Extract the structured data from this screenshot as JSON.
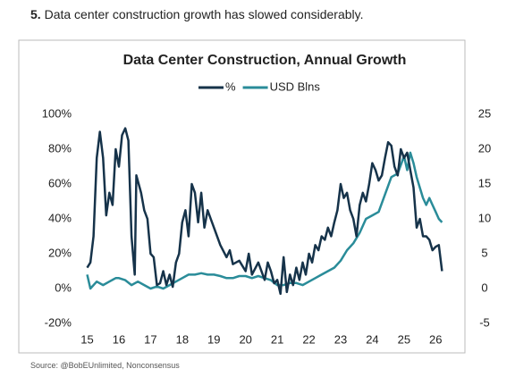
{
  "header": {
    "number": "5.",
    "text": "Data center construction growth has slowed considerably."
  },
  "source": "Source: @BobEUnlimited, Nonconsensus",
  "chart_data": {
    "type": "line",
    "title": "Data Center Construction, Annual Growth",
    "xlim": [
      14.9,
      26.5
    ],
    "xticks": [
      15,
      16,
      17,
      18,
      19,
      20,
      21,
      22,
      23,
      24,
      25,
      26
    ],
    "ylim": [
      -20,
      100
    ],
    "yticks": [
      {
        "value": 100,
        "label": "100%"
      },
      {
        "value": 80,
        "label": "80%"
      },
      {
        "value": 60,
        "label": "60%"
      },
      {
        "value": 40,
        "label": "40%"
      },
      {
        "value": 20,
        "label": "20%"
      },
      {
        "value": 0,
        "label": "0%"
      },
      {
        "value": -20,
        "label": "-20%"
      }
    ],
    "y2lim": [
      -5,
      25
    ],
    "y2ticks": [
      25,
      20,
      15,
      10,
      5,
      0,
      -5
    ],
    "series": [
      {
        "name": "%",
        "color": "#16334a",
        "x": [
          15.0,
          15.1,
          15.2,
          15.3,
          15.4,
          15.5,
          15.6,
          15.7,
          15.8,
          15.9,
          16.0,
          16.1,
          16.2,
          16.3,
          16.4,
          16.5,
          16.55,
          16.7,
          16.8,
          16.9,
          17.0,
          17.1,
          17.2,
          17.3,
          17.4,
          17.5,
          17.6,
          17.7,
          17.8,
          17.9,
          18.0,
          18.1,
          18.2,
          18.3,
          18.4,
          18.5,
          18.6,
          18.7,
          18.8,
          18.9,
          19.0,
          19.2,
          19.4,
          19.5,
          19.6,
          19.8,
          20.0,
          20.1,
          20.2,
          20.4,
          20.6,
          20.7,
          20.8,
          20.9,
          21.0,
          21.1,
          21.2,
          21.3,
          21.4,
          21.5,
          21.6,
          21.7,
          21.8,
          21.9,
          22.0,
          22.1,
          22.2,
          22.3,
          22.4,
          22.5,
          22.6,
          22.7,
          22.8,
          22.9,
          23.0,
          23.1,
          23.2,
          23.3,
          23.4,
          23.5,
          23.6,
          23.7,
          23.8,
          23.9,
          24.0,
          24.1,
          24.2,
          24.3,
          24.4,
          24.5,
          24.6,
          24.7,
          24.8,
          24.9,
          25.0,
          25.1,
          25.2,
          25.3,
          25.4,
          25.5,
          25.6,
          25.7,
          25.8,
          25.9,
          26.0,
          26.1,
          26.2
        ],
        "values": [
          12,
          15,
          30,
          75,
          90,
          75,
          42,
          55,
          48,
          80,
          70,
          88,
          92,
          85,
          30,
          8,
          65,
          55,
          45,
          40,
          20,
          18,
          2,
          3,
          10,
          2,
          8,
          1,
          15,
          20,
          38,
          45,
          30,
          60,
          55,
          38,
          55,
          35,
          45,
          40,
          35,
          25,
          18,
          22,
          14,
          16,
          10,
          20,
          8,
          15,
          5,
          15,
          10,
          3,
          5,
          -3,
          18,
          -2,
          8,
          2,
          12,
          5,
          15,
          8,
          20,
          15,
          25,
          22,
          30,
          28,
          35,
          30,
          38,
          45,
          60,
          52,
          55,
          45,
          40,
          30,
          48,
          55,
          50,
          60,
          72,
          68,
          62,
          65,
          75,
          84,
          82,
          70,
          65,
          80,
          75,
          78,
          68,
          58,
          35,
          40,
          30,
          30,
          28,
          22,
          24,
          25,
          10
        ]
      },
      {
        "name": "USD Blns",
        "color": "#2a8c99",
        "axis": "y2",
        "x": [
          15.0,
          15.1,
          15.3,
          15.5,
          15.7,
          15.9,
          16.0,
          16.2,
          16.4,
          16.6,
          16.8,
          17.0,
          17.2,
          17.4,
          17.6,
          17.8,
          18.0,
          18.2,
          18.4,
          18.6,
          18.8,
          19.0,
          19.2,
          19.4,
          19.6,
          19.8,
          20.0,
          20.2,
          20.4,
          20.6,
          20.8,
          21.0,
          21.2,
          21.4,
          21.6,
          21.8,
          22.0,
          22.2,
          22.4,
          22.6,
          22.8,
          23.0,
          23.2,
          23.4,
          23.6,
          23.8,
          24.0,
          24.2,
          24.4,
          24.6,
          24.8,
          25.0,
          25.1,
          25.2,
          25.3,
          25.4,
          25.6,
          25.7,
          25.8,
          25.9,
          26.0,
          26.1,
          26.2
        ],
        "values": [
          2,
          0,
          1,
          0.5,
          1,
          1.5,
          1.5,
          1.2,
          0.5,
          1,
          0.5,
          0,
          0.3,
          0,
          0.5,
          1,
          1.5,
          2,
          2,
          2.2,
          2,
          2,
          1.8,
          1.5,
          1.5,
          1.8,
          1.8,
          1.5,
          1.8,
          1.5,
          1.2,
          0.5,
          0.5,
          0.8,
          0.8,
          0.5,
          1,
          1.5,
          2,
          2.5,
          3,
          4,
          5.5,
          6.5,
          8,
          10,
          10.5,
          11,
          13.5,
          16,
          16.5,
          19,
          17,
          19.5,
          18,
          16,
          13,
          12,
          13,
          12,
          11,
          10,
          9.5
        ]
      }
    ]
  }
}
